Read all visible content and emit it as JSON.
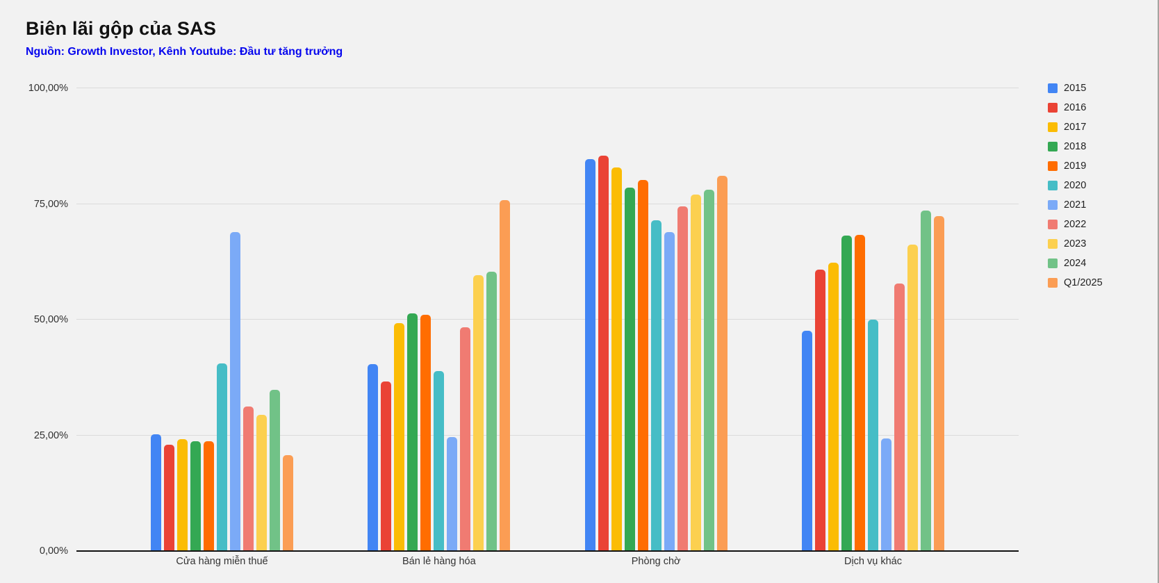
{
  "header": {
    "title": "Biên lãi gộp của SAS",
    "source": "Nguồn: Growth Investor, Kênh Youtube: Đầu tư tăng trưởng"
  },
  "colors": {
    "background": "#F2F2F2",
    "source_text": "#0505EE",
    "gridline": "#DBDBDB",
    "axis_line": "#111111"
  },
  "chart_data": {
    "type": "bar",
    "title": "Biên lãi gộp của SAS",
    "subtitle": "Nguồn: Growth Investor, Kênh Youtube: Đầu tư tăng trưởng",
    "categories": [
      "Cửa hàng miễn thuế",
      "Bán lẻ hàng hóa",
      "Phòng chờ",
      "Dịch vụ khác"
    ],
    "series": [
      {
        "name": "2015",
        "color": "#4285F4",
        "values": [
          25.3,
          40.4,
          84.7,
          47.6
        ]
      },
      {
        "name": "2016",
        "color": "#EA4335",
        "values": [
          23.0,
          36.6,
          85.5,
          60.8
        ]
      },
      {
        "name": "2017",
        "color": "#FBBC04",
        "values": [
          24.2,
          49.2,
          82.9,
          62.3
        ]
      },
      {
        "name": "2018",
        "color": "#34A853",
        "values": [
          23.8,
          51.4,
          78.5,
          68.2
        ]
      },
      {
        "name": "2019",
        "color": "#FF6D01",
        "values": [
          23.8,
          51.0,
          80.2,
          68.3
        ]
      },
      {
        "name": "2020",
        "color": "#46BDC6",
        "values": [
          40.5,
          38.9,
          71.5,
          50.0
        ]
      },
      {
        "name": "2021",
        "color": "#7BAAF7",
        "values": [
          69.0,
          24.6,
          68.9,
          24.3
        ]
      },
      {
        "name": "2022",
        "color": "#F07B72",
        "values": [
          31.3,
          48.3,
          74.5,
          57.8
        ]
      },
      {
        "name": "2023",
        "color": "#FCD04F",
        "values": [
          29.5,
          59.6,
          77.0,
          66.2
        ]
      },
      {
        "name": "2024",
        "color": "#71C287",
        "values": [
          34.8,
          60.3,
          78.1,
          73.6
        ]
      },
      {
        "name": "Q1/2025",
        "color": "#FB9D54",
        "values": [
          20.8,
          75.8,
          81.1,
          72.4
        ]
      }
    ],
    "y_axis": {
      "range": [
        0,
        100
      ],
      "ticks": [
        0,
        25,
        50,
        75,
        100
      ],
      "tick_labels": [
        "0,00%",
        "25,00%",
        "50,00%",
        "75,00%",
        "100,00%"
      ],
      "unit": "percent"
    },
    "legend_position": "right",
    "grid": true
  }
}
